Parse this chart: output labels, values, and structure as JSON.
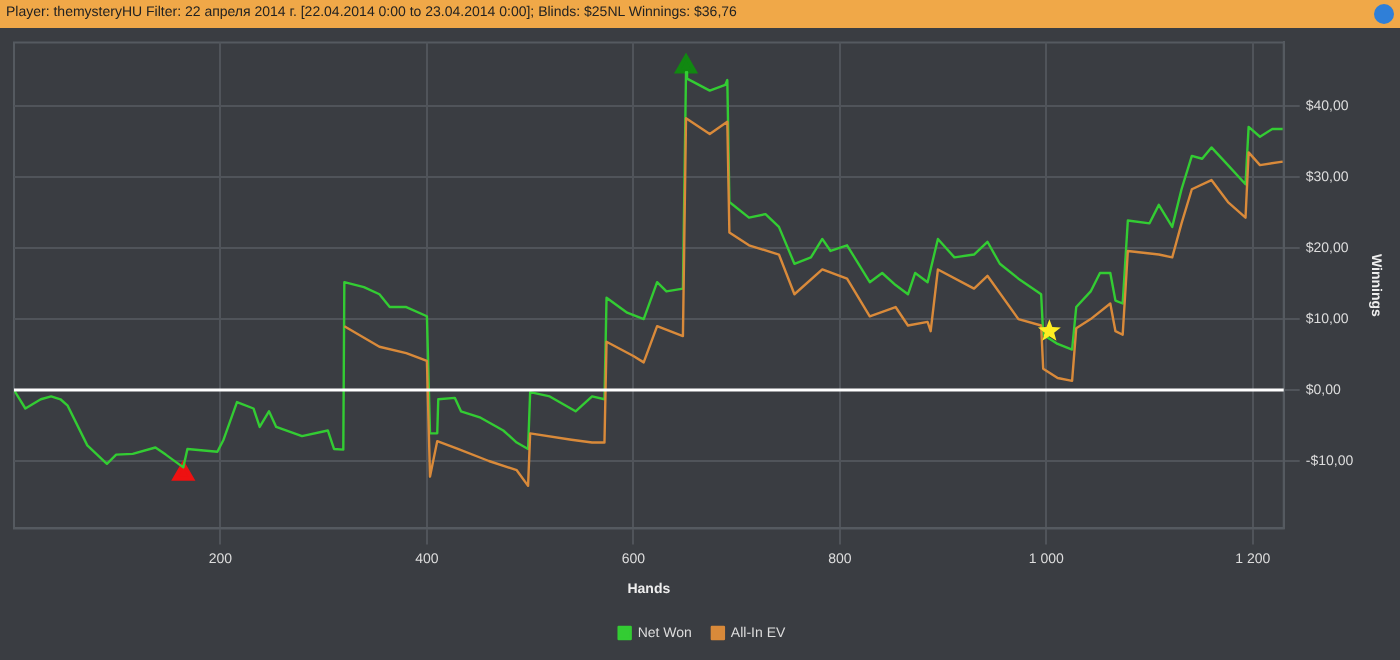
{
  "chart_data": {
    "type": "line",
    "title": "Player: themysteryHU Filter: 22 апреля 2014 г. [22.04.2014 0:00 to 23.04.2014 0:00]; Blinds: $25NL Winnings: $36,76",
    "xlabel": "Hands",
    "ylabel": "Winnings",
    "xlim": [
      0,
      1230
    ],
    "xticks": [
      200,
      400,
      600,
      800,
      {
        "value": 1000,
        "label": "1 000"
      },
      {
        "value": 1200,
        "label": "1 200"
      }
    ],
    "ylim": [
      -19.5,
      49
    ],
    "yticks": [
      {
        "value": -10,
        "label": "-$10,00"
      },
      {
        "value": 0,
        "label": "$0,00"
      },
      {
        "value": 10,
        "label": "$10,00"
      },
      {
        "value": 20,
        "label": "$20,00"
      },
      {
        "value": 30,
        "label": "$30,00"
      },
      {
        "value": 40,
        "label": "$40,00"
      }
    ],
    "grid": true,
    "legend": "bottom",
    "marker": "none",
    "ref_lines": [
      {
        "axis": "y",
        "value": 0,
        "color": "#ffffff"
      }
    ],
    "series": [
      {
        "name": "All-In EV",
        "color": "#d98a3a",
        "x": [
          320,
          354,
          380,
          400,
          403,
          410,
          430,
          460,
          487,
          498,
          500,
          540,
          560,
          572,
          574,
          600,
          610,
          623,
          648,
          651,
          674,
          691,
          693,
          712,
          741,
          756,
          783,
          807,
          829,
          854,
          866,
          885,
          888,
          895,
          930,
          943,
          973,
          995,
          997,
          1011,
          1025,
          1029,
          1043,
          1062,
          1067,
          1074,
          1079,
          1109,
          1122,
          1131,
          1141,
          1160,
          1176,
          1193,
          1196,
          1207,
          1229
        ],
        "values": [
          9.0,
          6.1,
          5.2,
          4.1,
          -12.2,
          -7.2,
          -8.3,
          -10.0,
          -11.3,
          -13.5,
          -6.1,
          -7.0,
          -7.4,
          -7.4,
          6.8,
          4.8,
          3.9,
          9.0,
          7.6,
          38.3,
          36.1,
          37.8,
          22.2,
          20.4,
          19.1,
          13.5,
          17.0,
          15.7,
          10.4,
          11.7,
          9.1,
          9.6,
          8.3,
          17.0,
          14.3,
          16.1,
          10.0,
          9.1,
          3.0,
          1.7,
          1.3,
          8.7,
          10.0,
          12.2,
          8.3,
          7.8,
          19.6,
          19.1,
          18.7,
          23.5,
          28.3,
          29.6,
          26.5,
          24.3,
          33.5,
          31.7,
          32.2
        ]
      },
      {
        "name": "Net Won",
        "color": "#33cc33",
        "x": [
          0,
          11,
          26,
          36,
          45,
          52,
          71,
          90,
          99,
          115,
          137,
          147,
          164,
          168,
          197,
          203,
          216,
          232,
          238,
          247,
          254,
          279,
          304,
          310,
          319,
          320,
          339,
          354,
          364,
          380,
          400,
          403,
          410,
          411,
          427,
          433,
          452,
          474,
          487,
          498,
          500,
          519,
          544,
          560,
          572,
          574,
          594,
          610,
          623,
          632,
          648,
          651,
          652,
          674,
          689,
          691,
          693,
          712,
          728,
          741,
          756,
          772,
          783,
          791,
          807,
          829,
          841,
          854,
          866,
          873,
          885,
          895,
          911,
          930,
          943,
          955,
          973,
          995,
          997,
          1011,
          1025,
          1029,
          1043,
          1052,
          1062,
          1067,
          1074,
          1079,
          1100,
          1109,
          1122,
          1131,
          1141,
          1151,
          1160,
          1176,
          1193,
          1196,
          1207,
          1219,
          1229
        ],
        "values": [
          0,
          -2.6,
          -1.3,
          -0.9,
          -1.3,
          -2.2,
          -7.8,
          -10.4,
          -9.1,
          -9.0,
          -8.1,
          -9.1,
          -10.9,
          -8.3,
          -8.7,
          -7.0,
          -1.7,
          -2.6,
          -5.2,
          -3.0,
          -5.2,
          -6.5,
          -5.7,
          -8.3,
          -8.4,
          15.2,
          14.5,
          13.5,
          11.7,
          11.7,
          10.4,
          -6.1,
          -6.1,
          -1.3,
          -1.1,
          -3.0,
          -3.9,
          -5.7,
          -7.4,
          -8.3,
          -0.3,
          -0.9,
          -3.0,
          -0.9,
          -1.3,
          13.0,
          10.9,
          10.0,
          15.2,
          13.9,
          14.3,
          44.8,
          43.9,
          42.2,
          43.0,
          43.7,
          26.5,
          24.3,
          24.8,
          23.0,
          17.8,
          18.7,
          21.3,
          19.6,
          20.4,
          15.2,
          16.5,
          14.8,
          13.5,
          16.5,
          15.2,
          21.3,
          18.7,
          19.1,
          20.9,
          17.8,
          15.7,
          13.5,
          7.8,
          6.5,
          5.7,
          11.7,
          13.9,
          16.5,
          16.5,
          12.6,
          12.2,
          23.9,
          23.5,
          26.1,
          23.0,
          28.3,
          33.0,
          32.6,
          34.2,
          31.7,
          29.0,
          37.1,
          35.7,
          36.8,
          36.8
        ]
      },
      {
        "type": "scatter",
        "marker": "triangle",
        "color": "#ee1111",
        "x": [
          164
        ],
        "values": [
          -11.8
        ]
      },
      {
        "type": "scatter",
        "marker": "triangle",
        "color": "#118811",
        "x": [
          651
        ],
        "values": [
          45.6
        ]
      },
      {
        "type": "scatter",
        "marker": "star",
        "color": "#ffee22",
        "x": [
          1003
        ],
        "values": [
          8.3
        ]
      }
    ]
  }
}
